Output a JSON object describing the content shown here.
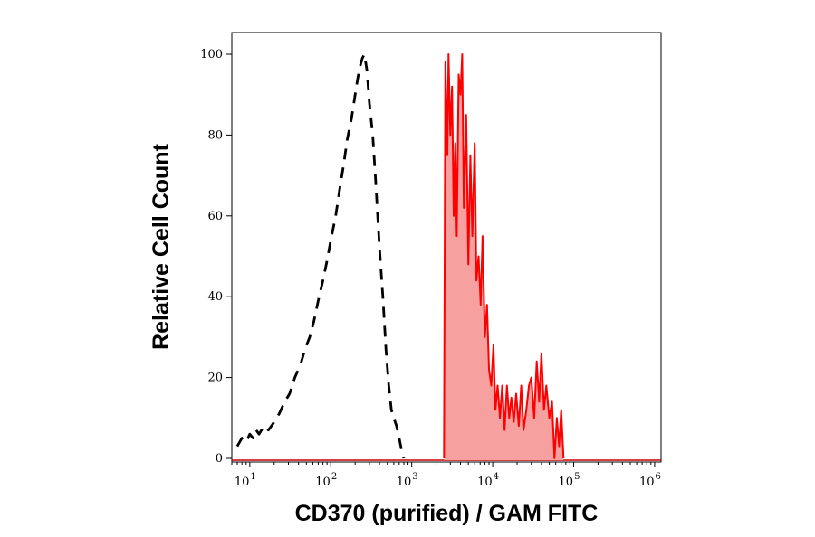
{
  "chart_data": {
    "type": "area",
    "title": "",
    "xlabel": "CD370 (purified) / GAM FITC",
    "ylabel": "Relative Cell Count",
    "x_scale": "log",
    "xlim": [
      6,
      1200000
    ],
    "ylim": [
      0,
      105
    ],
    "grid": false,
    "legend": "none",
    "x_ticks": [
      {
        "value": 10,
        "base": "10",
        "exp": "1"
      },
      {
        "value": 100,
        "base": "10",
        "exp": "2"
      },
      {
        "value": 1000,
        "base": "10",
        "exp": "3"
      },
      {
        "value": 10000,
        "base": "10",
        "exp": "4"
      },
      {
        "value": 100000,
        "base": "10",
        "exp": "5"
      },
      {
        "value": 1000000,
        "base": "10",
        "exp": "6"
      }
    ],
    "y_ticks": [
      {
        "value": 0,
        "label": "0"
      },
      {
        "value": 20,
        "label": "20"
      },
      {
        "value": 40,
        "label": "40"
      },
      {
        "value": 60,
        "label": "60"
      },
      {
        "value": 80,
        "label": "80"
      },
      {
        "value": 100,
        "label": "100"
      }
    ],
    "series": [
      {
        "style": "dashed",
        "color": "#000000",
        "filled": false,
        "x": [
          7,
          8,
          9,
          10,
          11,
          12,
          13,
          15,
          17,
          20,
          23,
          27,
          31,
          36,
          42,
          48,
          55,
          62,
          70,
          80,
          90,
          100,
          115,
          130,
          145,
          160,
          180,
          200,
          215,
          230,
          245,
          260,
          280,
          300,
          330,
          360,
          400,
          440,
          480,
          520,
          560,
          600,
          650,
          700,
          750,
          800
        ],
        "values": [
          3,
          5,
          4,
          6,
          5,
          7,
          6,
          8,
          7,
          9,
          11,
          14,
          16,
          20,
          23,
          27,
          30,
          34,
          39,
          44,
          49,
          54,
          60,
          67,
          73,
          79,
          84,
          90,
          94,
          97,
          99,
          100,
          96,
          88,
          80,
          68,
          52,
          40,
          27,
          18,
          12,
          10,
          8,
          5,
          2,
          0
        ]
      },
      {
        "style": "solid",
        "color": "#ff0000",
        "fill": "#f7a0a0",
        "filled": true,
        "x": [
          2500,
          2600,
          2750,
          2850,
          3000,
          3150,
          3300,
          3450,
          3600,
          3800,
          4000,
          4200,
          4400,
          4700,
          5000,
          5300,
          5600,
          6000,
          6300,
          6700,
          7100,
          7500,
          8000,
          8500,
          9000,
          9600,
          10200,
          10800,
          11500,
          12300,
          13100,
          14000,
          15000,
          16000,
          17000,
          18200,
          19500,
          21000,
          22500,
          24000,
          26000,
          28000,
          30000,
          32500,
          35000,
          37500,
          40000,
          43000,
          46000,
          50000,
          54000,
          58000,
          62000,
          66000,
          70000,
          75000
        ],
        "values": [
          0,
          98,
          75,
          100,
          80,
          92,
          60,
          78,
          55,
          95,
          90,
          100,
          62,
          85,
          48,
          75,
          55,
          78,
          44,
          50,
          38,
          55,
          30,
          38,
          22,
          18,
          28,
          12,
          18,
          10,
          18,
          7,
          18,
          10,
          15,
          9,
          16,
          8,
          18,
          7,
          12,
          18,
          20,
          10,
          24,
          14,
          26,
          12,
          18,
          10,
          14,
          0,
          10,
          3,
          12,
          0
        ]
      }
    ]
  }
}
